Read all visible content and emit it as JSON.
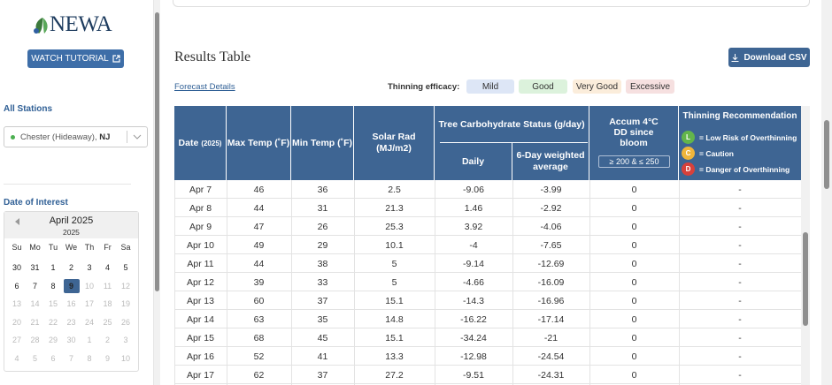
{
  "sidebar": {
    "logo": "NEWA",
    "tutorial_button": "WATCH TUTORIAL",
    "stations_label": "All Stations",
    "station": {
      "name": "Chester (Hideaway),",
      "state": "NJ"
    },
    "date_label": "Date of Interest",
    "calendar": {
      "month": "April 2025",
      "year": "2025",
      "weekdays": [
        "Su",
        "Mo",
        "Tu",
        "We",
        "Th",
        "Fr",
        "Sa"
      ],
      "weeks": [
        [
          30,
          31,
          1,
          2,
          3,
          4,
          5
        ],
        [
          6,
          7,
          8,
          9,
          10,
          11,
          12
        ],
        [
          13,
          14,
          15,
          16,
          17,
          18,
          19
        ],
        [
          20,
          21,
          22,
          23,
          24,
          25,
          26
        ],
        [
          27,
          28,
          29,
          30,
          1,
          2,
          3
        ],
        [
          4,
          5,
          6,
          7,
          8,
          9,
          10
        ]
      ]
    }
  },
  "main": {
    "title": "Results Table",
    "download": "Download CSV",
    "forecast_link": "Forecast Details",
    "efficacy_label": "Thinning efficacy:",
    "efficacy": [
      "Mild",
      "Good",
      "Very Good",
      "Excessive"
    ],
    "table": {
      "date_header": "Date",
      "date_note": "(2025)",
      "max_temp": "Max Temp (˚F)",
      "min_temp": "Min Temp (˚F)",
      "solar_rad": "Solar Rad (MJ/m2)",
      "carb_status": "Tree Carbohydrate Status (g/day)",
      "daily": "Daily",
      "six_day": "6-Day weighted average",
      "accum": "Accum 4°C DD since bloom",
      "accum_range": "≥ 200 & ≤ 250",
      "recommendation": "Thinning Recommendation",
      "legend": [
        {
          "code": "L",
          "text": "= Low Risk of Overthinning"
        },
        {
          "code": "C",
          "text": "= Caution"
        },
        {
          "code": "D",
          "text": "= Danger of Overthinning"
        }
      ],
      "rows": [
        [
          "Apr 7",
          46,
          36,
          2.5,
          -9.06,
          -3.99,
          0,
          "-"
        ],
        [
          "Apr 8",
          44,
          31,
          21.3,
          1.46,
          -2.92,
          0,
          "-"
        ],
        [
          "Apr 9",
          47,
          26,
          25.3,
          3.92,
          -4.06,
          0,
          "-"
        ],
        [
          "Apr 10",
          49,
          29,
          10.1,
          -4,
          -7.65,
          0,
          "-"
        ],
        [
          "Apr 11",
          44,
          38,
          5,
          -9.14,
          -12.69,
          0,
          "-"
        ],
        [
          "Apr 12",
          39,
          33,
          5,
          -4.66,
          -16.09,
          0,
          "-"
        ],
        [
          "Apr 13",
          60,
          37,
          15.1,
          -14.3,
          -16.96,
          0,
          "-"
        ],
        [
          "Apr 14",
          63,
          35,
          14.8,
          -16.22,
          -17.14,
          0,
          "-"
        ],
        [
          "Apr 15",
          68,
          45,
          15.1,
          -34.24,
          -21,
          0,
          "-"
        ],
        [
          "Apr 16",
          52,
          41,
          13.3,
          -12.98,
          -24.54,
          0,
          "-"
        ],
        [
          "Apr 17",
          62,
          37,
          27.2,
          -9.51,
          -24.31,
          0,
          "-"
        ]
      ]
    }
  }
}
